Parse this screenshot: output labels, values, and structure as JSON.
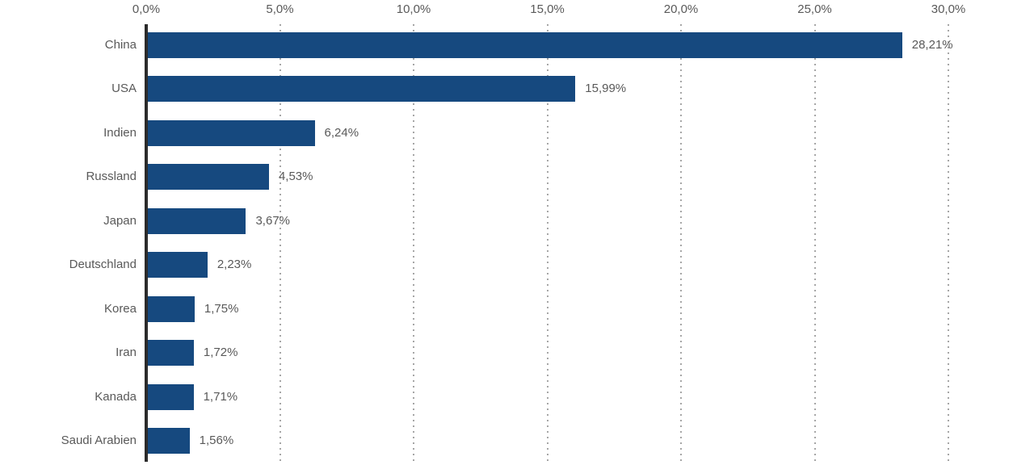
{
  "chart_data": {
    "type": "bar",
    "orientation": "horizontal",
    "title": "",
    "categories": [
      "China",
      "USA",
      "Indien",
      "Russland",
      "Japan",
      "Deutschland",
      "Korea",
      "Iran",
      "Kanada",
      "Saudi Arabien"
    ],
    "values": [
      28.21,
      15.99,
      6.24,
      4.53,
      3.67,
      2.23,
      1.75,
      1.72,
      1.71,
      1.56
    ],
    "value_labels": [
      "28,21%",
      "15,99%",
      "6,24%",
      "4,53%",
      "3,67%",
      "2,23%",
      "1,75%",
      "1,72%",
      "1,71%",
      "1,56%"
    ],
    "x_axis": {
      "position": "top",
      "tick_labels": [
        "0,0%",
        "5,0%",
        "10,0%",
        "15,0%",
        "20,0%",
        "25,0%",
        "30,0%"
      ],
      "tick_values": [
        0,
        5,
        10,
        15,
        20,
        25,
        30
      ],
      "min": 0,
      "max": 30,
      "grid": "dotted-vertical"
    },
    "colors": {
      "bar": "#16497f",
      "axis_line": "#2b2b2b",
      "grid": "#a6a6a6",
      "text": "#595959",
      "background": "#ffffff"
    }
  }
}
